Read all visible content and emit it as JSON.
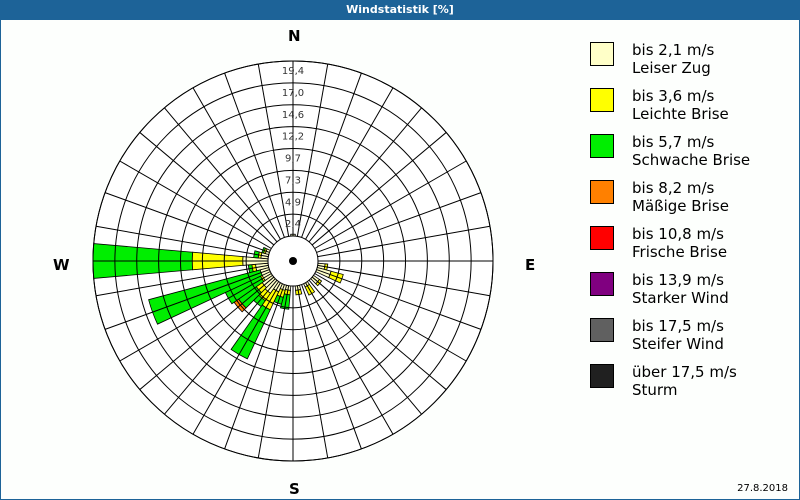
{
  "window": {
    "title": "Windstatistik [%]"
  },
  "compass": {
    "n": "N",
    "e": "E",
    "s": "S",
    "w": "W"
  },
  "footer": {
    "date": "27.8.2018"
  },
  "legend": [
    {
      "range": "bis 2,1 m/s",
      "name": "Leiser Zug",
      "color": "#ffffc8"
    },
    {
      "range": "bis 3,6 m/s",
      "name": "Leichte Brise",
      "color": "#ffff00"
    },
    {
      "range": "bis 5,7 m/s",
      "name": "Schwache Brise",
      "color": "#00ee00"
    },
    {
      "range": "bis 8,2 m/s",
      "name": "Mäßige Brise",
      "color": "#ff8000"
    },
    {
      "range": "bis 10,8 m/s",
      "name": "Frische Brise",
      "color": "#ff0000"
    },
    {
      "range": "bis 13,9 m/s",
      "name": "Starker Wind",
      "color": "#800080"
    },
    {
      "range": "bis 17,5 m/s",
      "name": "Steifer Wind",
      "color": "#606060"
    },
    {
      "range": "über 17,5 m/s",
      "name": "Sturm",
      "color": "#202020"
    }
  ],
  "chart_data": {
    "type": "polar-stacked-bar",
    "title": "Windstatistik [%]",
    "radial_ticks": [
      "2,4",
      "4,9",
      "7,3",
      "9,7",
      "12,2",
      "14,6",
      "17,0",
      "19,4"
    ],
    "radial_max": 19.4,
    "sector_width_deg": 10,
    "series_names": [
      "bis 2,1 m/s",
      "bis 3,6 m/s",
      "bis 5,7 m/s",
      "bis 8,2 m/s",
      "bis 10,8 m/s",
      "bis 13,9 m/s",
      "bis 17,5 m/s",
      "über 17,5 m/s"
    ],
    "sectors": [
      {
        "dir": 0,
        "values": [
          0.2,
          0.0,
          0.0,
          0,
          0,
          0,
          0,
          0
        ]
      },
      {
        "dir": 100,
        "values": [
          0.8,
          0.3,
          0.0,
          0,
          0,
          0,
          0,
          0
        ]
      },
      {
        "dir": 110,
        "values": [
          1.6,
          1.4,
          0.0,
          0,
          0,
          0,
          0,
          0
        ]
      },
      {
        "dir": 130,
        "values": [
          0.8,
          0.3,
          0.0,
          0,
          0,
          0,
          0,
          0
        ]
      },
      {
        "dir": 150,
        "values": [
          0.4,
          1.0,
          0.0,
          0,
          0,
          0,
          0,
          0
        ]
      },
      {
        "dir": 170,
        "values": [
          0.5,
          0.5,
          0.0,
          0,
          0,
          0,
          0,
          0
        ]
      },
      {
        "dir": 190,
        "values": [
          0.5,
          0.5,
          1.6,
          0,
          0,
          0,
          0,
          0
        ]
      },
      {
        "dir": 200,
        "values": [
          0.6,
          0.8,
          0.8,
          0,
          0,
          0,
          0,
          0
        ]
      },
      {
        "dir": 210,
        "values": [
          1.0,
          2.2,
          6.0,
          0,
          0,
          0,
          0,
          0
        ]
      },
      {
        "dir": 220,
        "values": [
          1.6,
          1.0,
          0.8,
          0,
          0,
          0,
          0,
          0
        ]
      },
      {
        "dir": 230,
        "values": [
          1.4,
          0.8,
          2.4,
          0.6,
          0,
          0,
          0,
          0
        ]
      },
      {
        "dir": 240,
        "values": [
          1.0,
          0.2,
          4.3,
          0,
          0,
          0,
          0,
          0
        ]
      },
      {
        "dir": 250,
        "values": [
          1.0,
          0.0,
          12.8,
          0,
          0,
          0,
          0,
          0
        ]
      },
      {
        "dir": 260,
        "values": [
          1.4,
          0.4,
          0.4,
          0,
          0,
          0,
          0,
          0
        ]
      },
      {
        "dir": 270,
        "values": [
          2.8,
          5.6,
          11.0,
          0,
          0,
          0,
          0,
          0
        ]
      },
      {
        "dir": 280,
        "values": [
          0.8,
          0.3,
          0.5,
          0,
          0,
          0,
          0,
          0
        ]
      },
      {
        "dir": 290,
        "values": [
          0.4,
          0.2,
          0.2,
          0,
          0,
          0,
          0,
          0
        ]
      }
    ]
  }
}
